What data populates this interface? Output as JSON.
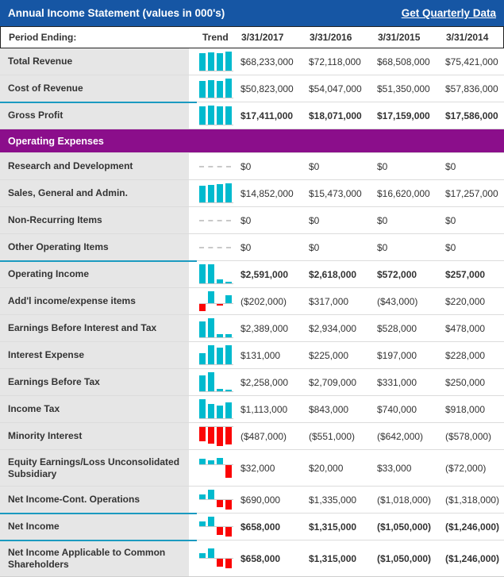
{
  "title_bar": {
    "title": "Annual Income Statement (values in 000's)",
    "link_label": "Get Quarterly Data"
  },
  "table": {
    "header": {
      "label": "Period Ending:",
      "trend": "Trend",
      "columns": [
        "3/31/2017",
        "3/31/2016",
        "3/31/2015",
        "3/31/2014"
      ]
    },
    "rows": [
      {
        "label": "Total Revenue",
        "values": [
          "$68,233,000",
          "$72,118,000",
          "$68,508,000",
          "$75,421,000"
        ],
        "trend": [
          68233,
          72118,
          68508,
          75421
        ],
        "bold": false,
        "teal_line": false
      },
      {
        "label": "Cost of Revenue",
        "values": [
          "$50,823,000",
          "$54,047,000",
          "$51,350,000",
          "$57,836,000"
        ],
        "trend": [
          50823,
          54047,
          51350,
          57836
        ],
        "bold": false,
        "teal_line": false
      },
      {
        "label": "Gross Profit",
        "values": [
          "$17,411,000",
          "$18,071,000",
          "$17,159,000",
          "$17,586,000"
        ],
        "trend": [
          17411,
          18071,
          17159,
          17586
        ],
        "bold": true,
        "teal_line": true
      },
      {
        "section": true,
        "label": "Operating Expenses"
      },
      {
        "label": "Research and Development",
        "values": [
          "$0",
          "$0",
          "$0",
          "$0"
        ],
        "trend": [
          0,
          0,
          0,
          0
        ],
        "bold": false,
        "teal_line": false
      },
      {
        "label": "Sales, General and Admin.",
        "values": [
          "$14,852,000",
          "$15,473,000",
          "$16,620,000",
          "$17,257,000"
        ],
        "trend": [
          14852,
          15473,
          16620,
          17257
        ],
        "bold": false,
        "teal_line": false
      },
      {
        "label": "Non-Recurring Items",
        "values": [
          "$0",
          "$0",
          "$0",
          "$0"
        ],
        "trend": [
          0,
          0,
          0,
          0
        ],
        "bold": false,
        "teal_line": false
      },
      {
        "label": "Other Operating Items",
        "values": [
          "$0",
          "$0",
          "$0",
          "$0"
        ],
        "trend": [
          0,
          0,
          0,
          0
        ],
        "bold": false,
        "teal_line": false
      },
      {
        "label": "Operating Income",
        "values": [
          "$2,591,000",
          "$2,618,000",
          "$572,000",
          "$257,000"
        ],
        "trend": [
          2591,
          2618,
          572,
          257
        ],
        "bold": true,
        "teal_line": true
      },
      {
        "label": "Add'l income/expense items",
        "values": [
          "($202,000)",
          "$317,000",
          "($43,000)",
          "$220,000"
        ],
        "trend": [
          -202,
          317,
          -43,
          220
        ],
        "bold": false,
        "teal_line": false
      },
      {
        "label": "Earnings Before Interest and Tax",
        "values": [
          "$2,389,000",
          "$2,934,000",
          "$528,000",
          "$478,000"
        ],
        "trend": [
          2389,
          2934,
          528,
          478
        ],
        "bold": false,
        "teal_line": false
      },
      {
        "label": "Interest Expense",
        "values": [
          "$131,000",
          "$225,000",
          "$197,000",
          "$228,000"
        ],
        "trend": [
          131,
          225,
          197,
          228
        ],
        "bold": false,
        "teal_line": false
      },
      {
        "label": "Earnings Before Tax",
        "values": [
          "$2,258,000",
          "$2,709,000",
          "$331,000",
          "$250,000"
        ],
        "trend": [
          2258,
          2709,
          331,
          250
        ],
        "bold": false,
        "teal_line": false
      },
      {
        "label": "Income Tax",
        "values": [
          "$1,113,000",
          "$843,000",
          "$740,000",
          "$918,000"
        ],
        "trend": [
          1113,
          843,
          740,
          918
        ],
        "bold": false,
        "teal_line": false
      },
      {
        "label": "Minority Interest",
        "values": [
          "($487,000)",
          "($551,000)",
          "($642,000)",
          "($578,000)"
        ],
        "trend": [
          -487,
          -551,
          -642,
          -578
        ],
        "bold": false,
        "teal_line": false
      },
      {
        "label": "Equity Earnings/Loss Unconsolidated Subsidiary",
        "values": [
          "$32,000",
          "$20,000",
          "$33,000",
          "($72,000)"
        ],
        "trend": [
          32,
          20,
          33,
          -72
        ],
        "bold": false,
        "teal_line": false,
        "tall": true
      },
      {
        "label": "Net Income-Cont. Operations",
        "values": [
          "$690,000",
          "$1,335,000",
          "($1,018,000)",
          "($1,318,000)"
        ],
        "trend": [
          690,
          1335,
          -1018,
          -1318
        ],
        "bold": false,
        "teal_line": false
      },
      {
        "label": "Net Income",
        "values": [
          "$658,000",
          "$1,315,000",
          "($1,050,000)",
          "($1,246,000)"
        ],
        "trend": [
          658,
          1315,
          -1050,
          -1246
        ],
        "bold": true,
        "teal_line": true
      },
      {
        "label": "Net Income Applicable to Common Shareholders",
        "values": [
          "$658,000",
          "$1,315,000",
          "($1,050,000)",
          "($1,246,000)"
        ],
        "trend": [
          658,
          1315,
          -1050,
          -1246
        ],
        "bold": true,
        "teal_line": true,
        "tall": true
      }
    ]
  },
  "colors": {
    "header_blue": "#1656a4",
    "section_purple": "#8b0e8b",
    "spark_teal": "#00bace",
    "spark_red": "#fb0505",
    "teal_rule": "#1b9ac0",
    "label_bg": "#e6e6e6",
    "text": "#333333"
  }
}
